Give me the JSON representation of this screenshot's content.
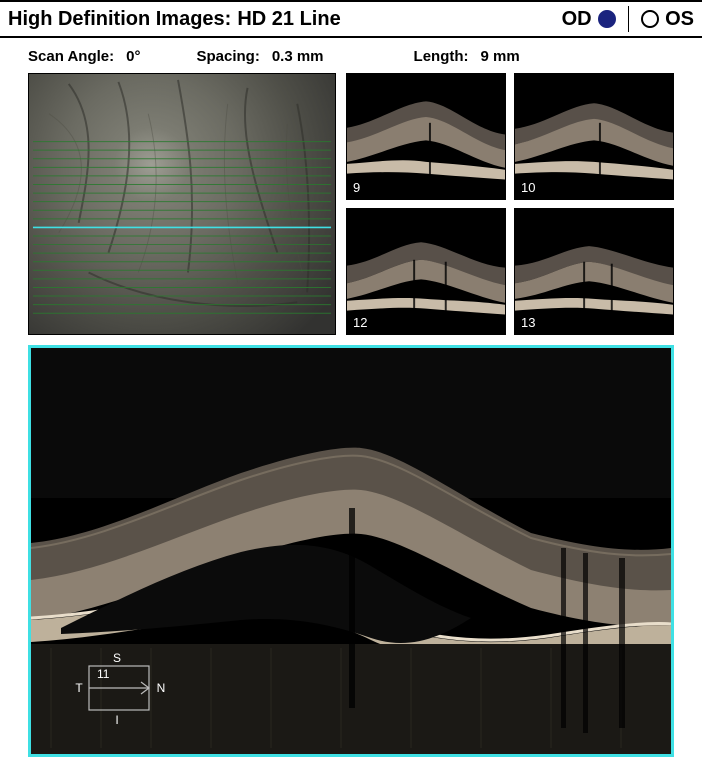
{
  "header": {
    "title_label": "High Definition Images:",
    "title_value": "HD 21 Line",
    "od_label": "OD",
    "os_label": "OS",
    "od_selected": true
  },
  "params": {
    "scan_angle_label": "Scan Angle:",
    "scan_angle_value": "0°",
    "spacing_label": "Spacing:",
    "spacing_value": "0.3 mm",
    "length_label": "Length:",
    "length_value": "9 mm"
  },
  "fundus": {
    "scan_lines": 21,
    "highlighted_line_index": 10,
    "line_color": "#2a7a2f",
    "highlighted_color": "#3fe0e4",
    "line_region": {
      "top_pct": 26,
      "bottom_pct": 92
    }
  },
  "thumbs": [
    {
      "index": 9
    },
    {
      "index": 10
    },
    {
      "index": 12
    },
    {
      "index": 13
    }
  ],
  "main": {
    "slice_index": 11,
    "orient": {
      "top": "S",
      "bottom": "I",
      "left": "T",
      "right": "N"
    },
    "highlight_color": "#3fe0e4"
  },
  "colors": {
    "background": "#ffffff",
    "text": "#000000",
    "selected_radio": "#1a237e"
  }
}
